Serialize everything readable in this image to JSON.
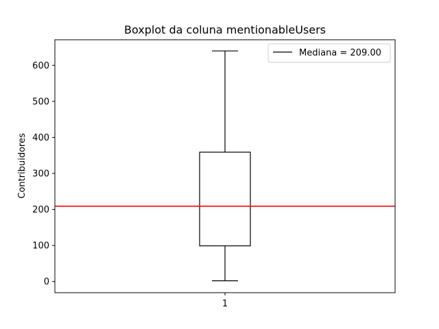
{
  "chart_data": {
    "type": "boxplot",
    "title": "Boxplot da coluna mentionableUsers",
    "xlabel": "",
    "ylabel": "Contribuidores",
    "categories": [
      "1"
    ],
    "ylim": [
      -31,
      671
    ],
    "yticks": [
      0,
      100,
      200,
      300,
      400,
      500,
      600
    ],
    "box": {
      "whisker_low": 2,
      "q1": 99,
      "median": 209,
      "q3": 359,
      "whisker_high": 640
    },
    "reference_line": {
      "value": 209,
      "color": "#ff0000"
    },
    "median_color": "#ff7f0e",
    "legend": {
      "entries": [
        "Mediana = 209.00"
      ],
      "placement": "upper right"
    },
    "grid": false
  }
}
